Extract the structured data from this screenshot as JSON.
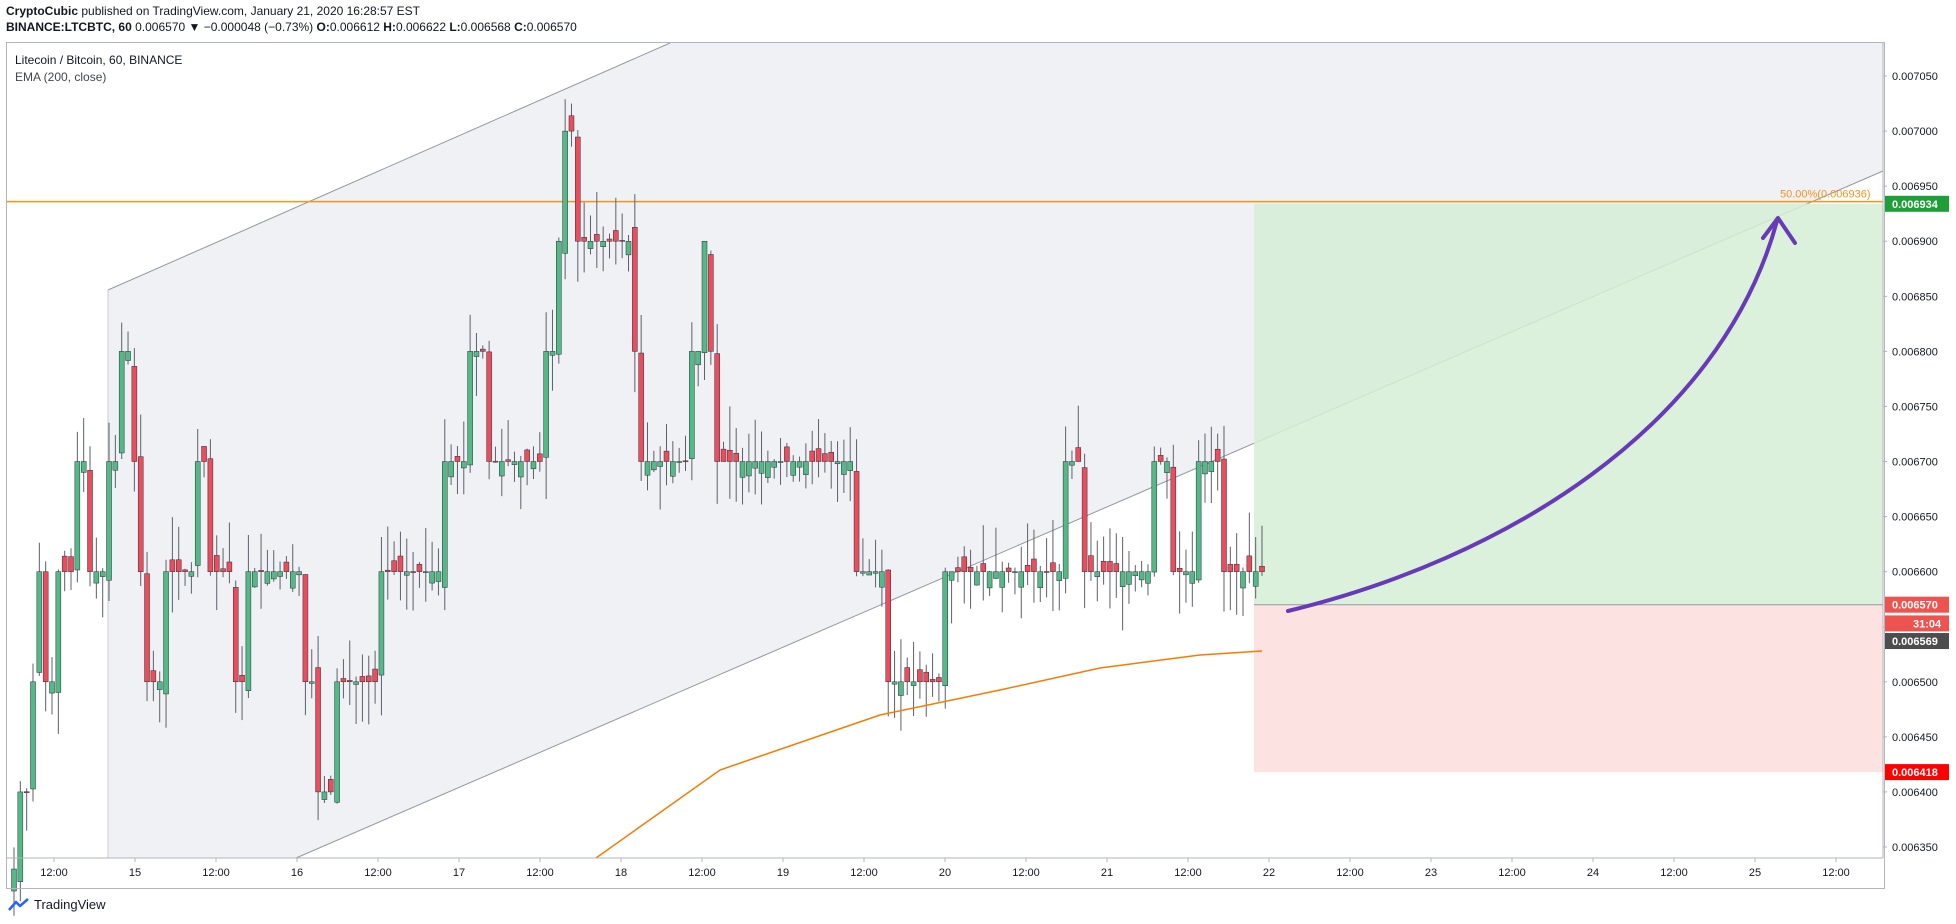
{
  "header": {
    "author": "CryptoCubic",
    "published_text": "published on TradingView.com, January 21, 2020 16:28:57 EST",
    "symbol": "BINANCE:LTCBTC, 60",
    "last": "0.006570",
    "change": "▼ −0.000048 (−0.73%)",
    "ohlc": {
      "o_label": "O:",
      "o": "0.006612",
      "h_label": "H:",
      "h": "0.006622",
      "l_label": "L:",
      "l": "0.006568",
      "c_label": "C:",
      "c": "0.006570"
    }
  },
  "legend": {
    "title": "Litecoin / Bitcoin, 60, BINANCE",
    "indicator": "EMA (200, close)"
  },
  "footer": {
    "brand": "TradingView",
    "logo_icon": "tradingview-logo-icon"
  },
  "colors": {
    "up": "#26a69a",
    "up_fill": "#53b987",
    "down": "#ef5350",
    "down_fill": "#eb4d5c",
    "ema": "#f57c00",
    "level": "#f7931a",
    "target_zone": "#d6eed6",
    "stop_zone": "#fde2e2",
    "arrow": "#673ab7",
    "channel_fill": "#eceef2",
    "target_tag": "#1e9e36",
    "stop_tag": "#ff0000"
  },
  "chart_data": {
    "type": "candlestick",
    "title": "Litecoin / Bitcoin, 60, BINANCE",
    "ylim": [
      0.00634,
      0.00708
    ],
    "x_tick_labels": [
      "12:00",
      "15",
      "12:00",
      "16",
      "12:00",
      "17",
      "12:00",
      "18",
      "12:00",
      "19",
      "12:00",
      "20",
      "12:00",
      "21",
      "12:00",
      "22",
      "12:00",
      "23",
      "12:00",
      "24",
      "12:00",
      "25",
      "12:00"
    ],
    "y_tick_labels": [
      "0.007050",
      "0.007000",
      "0.006950",
      "0.006900",
      "0.006850",
      "0.006800",
      "0.006750",
      "0.006700",
      "0.006650",
      "0.006600",
      "0.006550",
      "0.006500",
      "0.006450",
      "0.006400",
      "0.006350"
    ],
    "y_tick_values": [
      0.00705,
      0.007,
      0.00695,
      0.0069,
      0.00685,
      0.0068,
      0.00675,
      0.0067,
      0.00665,
      0.0066,
      0.00655,
      0.0065,
      0.00645,
      0.0064,
      0.00635
    ],
    "candles_close": [
      0.00633,
      0.0064,
      0.0064,
      0.0065,
      0.0066,
      0.0065,
      0.0065,
      0.0066,
      0.0066,
      0.0066,
      0.0067,
      0.0067,
      0.0066,
      0.0066,
      0.0066,
      0.0067,
      0.0067,
      0.0068,
      0.0068,
      0.0067,
      0.0066,
      0.0065,
      0.0065,
      0.0065,
      0.0066,
      0.0066,
      0.0066,
      0.0066,
      0.0066,
      0.0067,
      0.0067,
      0.0066,
      0.0066,
      0.0066,
      0.0066,
      0.0065,
      0.0065,
      0.0066,
      0.0066,
      0.0066,
      0.0066,
      0.0066,
      0.0066,
      0.0066,
      0.0066,
      0.0066,
      0.0065,
      0.0065,
      0.0064,
      0.0064,
      0.0064,
      0.0065,
      0.0065,
      0.0065,
      0.0065,
      0.0065,
      0.0065,
      0.0065,
      0.0066,
      0.0066,
      0.0066,
      0.0066,
      0.0066,
      0.0066,
      0.0066,
      0.0066,
      0.0066,
      0.0066,
      0.0067,
      0.0067,
      0.0067,
      0.0067,
      0.0068,
      0.0068,
      0.0068,
      0.0067,
      0.0067,
      0.0067,
      0.0067,
      0.0067,
      0.0067,
      0.0067,
      0.0067,
      0.0067,
      0.0068,
      0.0068,
      0.0069,
      0.007,
      0.007,
      0.0069,
      0.0069,
      0.0069,
      0.0069,
      0.0069,
      0.0069,
      0.0069,
      0.0069,
      0.0069,
      0.0068,
      0.0067,
      0.0067,
      0.0067,
      0.0067,
      0.0067,
      0.0067,
      0.0067,
      0.0067,
      0.0068,
      0.0068,
      0.0069,
      0.0068,
      0.0067,
      0.0067,
      0.0067,
      0.0067,
      0.0067,
      0.0067,
      0.0067,
      0.0067,
      0.0067,
      0.0067,
      0.0067,
      0.0067,
      0.0067,
      0.0067,
      0.0067,
      0.0067,
      0.0067,
      0.0067,
      0.0067,
      0.0067,
      0.0067,
      0.0067,
      0.0066,
      0.0066,
      0.0066,
      0.0066,
      0.0066,
      0.0065,
      0.0065,
      0.0065,
      0.0065,
      0.0065,
      0.0065,
      0.0065,
      0.0065,
      0.0065,
      0.0066,
      0.0066,
      0.0066,
      0.0066,
      0.0066,
      0.0066,
      0.0066,
      0.0066,
      0.0066,
      0.0066,
      0.0066,
      0.0066,
      0.0066,
      0.0066,
      0.0066,
      0.0066,
      0.0066,
      0.0066,
      0.0066,
      0.0067,
      0.0067,
      0.0067,
      0.0066,
      0.0066,
      0.0066,
      0.0066,
      0.0066,
      0.0066,
      0.0066,
      0.0066,
      0.0066,
      0.0066,
      0.0066,
      0.0067,
      0.0067,
      0.0067,
      0.0066,
      0.0066,
      0.0066,
      0.0066,
      0.0067,
      0.0067,
      0.0067,
      0.0067,
      0.0066,
      0.0066,
      0.0066,
      0.0066,
      0.0066,
      0.0066,
      0.0066
    ],
    "ema": {
      "name": "EMA (200, close)",
      "x": [
        "17 12:00",
        "18",
        "19 12:00",
        "20",
        "21",
        "22"
      ],
      "values": [
        0.00634,
        0.00645,
        0.00649,
        0.00651,
        0.00653,
        0.006535
      ]
    },
    "horizontal_level": {
      "label": "50.00%(0.006936)",
      "value": 0.006936
    },
    "position": {
      "entry": 0.00657,
      "target": 0.006934,
      "stop": 0.006418
    },
    "price_tags": [
      {
        "label": "0.006934",
        "value": 0.006934,
        "role": "target"
      },
      {
        "label": "0.006570",
        "value": 0.00657,
        "role": "last"
      },
      {
        "label": "31:04",
        "value": 0.006553,
        "role": "countdown"
      },
      {
        "label": "0.006569",
        "value": 0.006537,
        "role": "ema"
      },
      {
        "label": "0.006418",
        "value": 0.006418,
        "role": "stop"
      }
    ],
    "grid": false
  }
}
